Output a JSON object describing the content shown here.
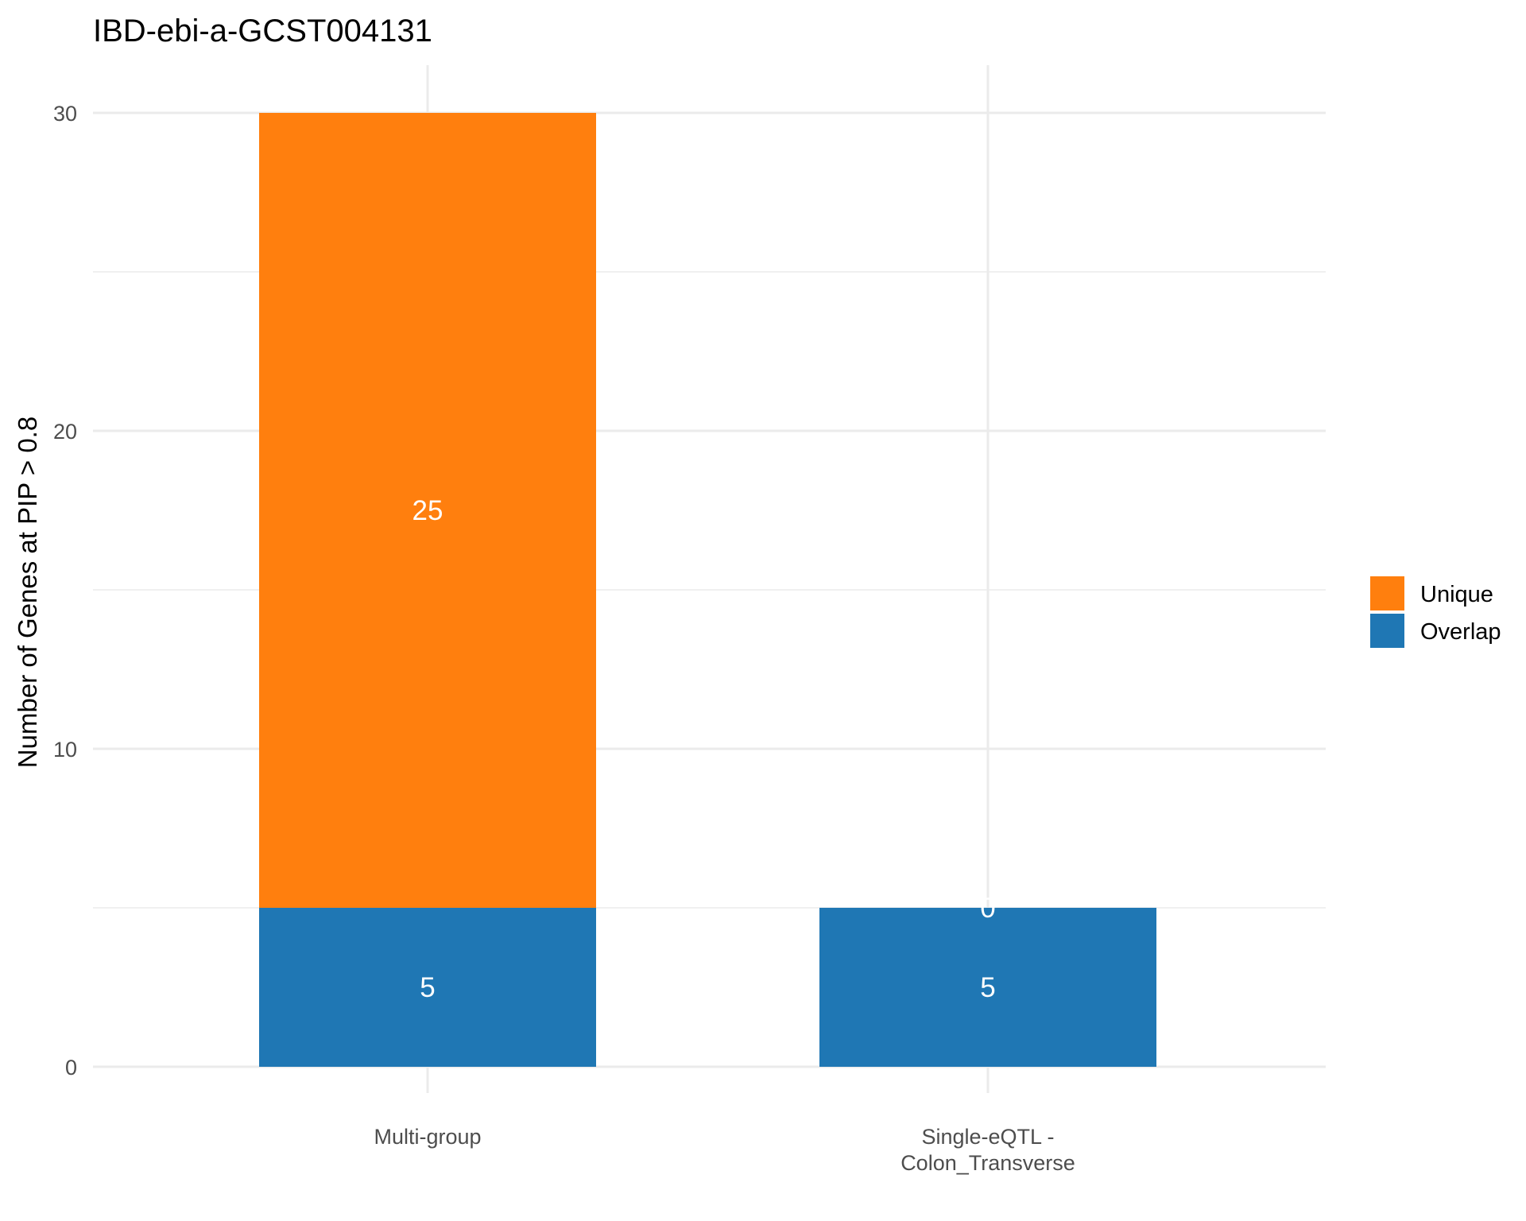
{
  "chart_data": {
    "type": "bar",
    "stacked": true,
    "title": "IBD-ebi-a-GCST004131",
    "xlabel": "",
    "ylabel": "Number of Genes at PIP > 0.8",
    "categories": [
      [
        "Multi-group"
      ],
      [
        "Single-eQTL -",
        "Colon_Transverse"
      ]
    ],
    "series": [
      {
        "name": "Overlap",
        "values": [
          5,
          5
        ],
        "labels": [
          "5",
          "5"
        ],
        "color": "#1f77b4"
      },
      {
        "name": "Unique",
        "values": [
          25,
          0
        ],
        "labels": [
          "25",
          "0"
        ],
        "color": "#ff7f0e"
      }
    ],
    "ylim": [
      0,
      30
    ],
    "yticks": [
      0,
      10,
      20,
      30
    ],
    "ytick_labels": [
      "0",
      "10",
      "20",
      "30"
    ],
    "grid": true,
    "legend": {
      "position": "right",
      "order": [
        "Unique",
        "Overlap"
      ]
    }
  }
}
